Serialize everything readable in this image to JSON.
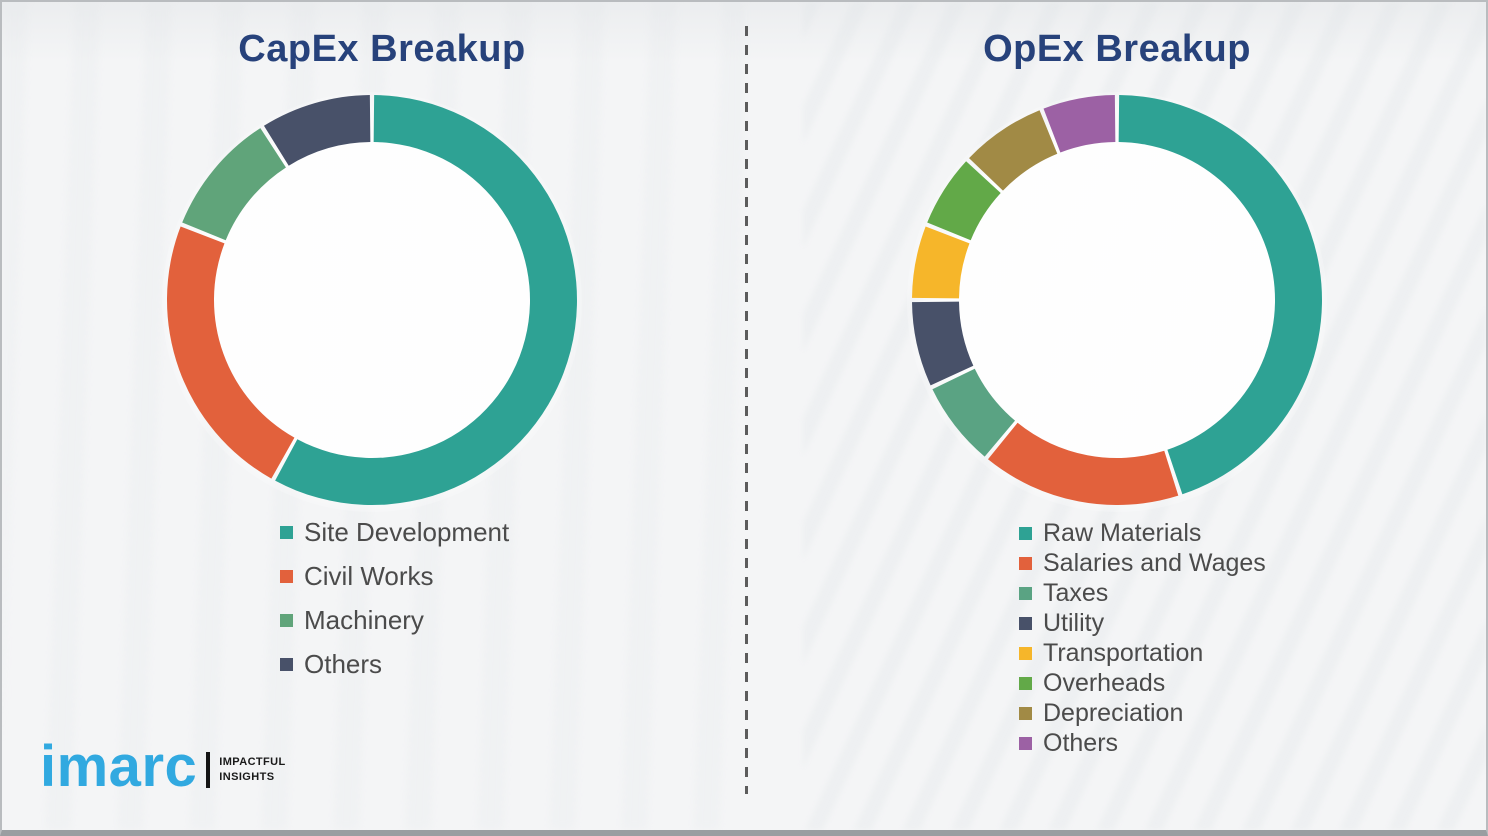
{
  "chart_data": [
    {
      "type": "pie",
      "subtype": "donut",
      "title": "CapEx Breakup",
      "categories": [
        "Site Development",
        "Civil Works",
        "Machinery",
        "Others"
      ],
      "values": [
        58,
        23,
        10,
        9
      ],
      "unit": "percent",
      "colors": [
        "#2EA294",
        "#E2613C",
        "#60A47A",
        "#485169"
      ],
      "start_angle_deg": 0,
      "direction": "clockwise",
      "legend_position": "bottom-left",
      "data_labels_shown": false
    },
    {
      "type": "pie",
      "subtype": "donut",
      "title": "OpEx Breakup",
      "categories": [
        "Raw Materials",
        "Salaries and Wages",
        "Taxes",
        "Utility",
        "Transportation",
        "Overheads",
        "Depreciation",
        "Others"
      ],
      "values": [
        45,
        16,
        7,
        7,
        6,
        6,
        7,
        6
      ],
      "unit": "percent",
      "colors": [
        "#2EA294",
        "#E2613C",
        "#5AA383",
        "#485169",
        "#F6B62A",
        "#62A948",
        "#A18A45",
        "#9C61A4"
      ],
      "start_angle_deg": 0,
      "direction": "clockwise",
      "legend_position": "bottom-left",
      "data_labels_shown": false
    }
  ],
  "branding": {
    "wordmark": "imarc",
    "tagline_line1": "IMPACTFUL",
    "tagline_line2": "INSIGHTS",
    "wordmark_color": "#31A9E0"
  },
  "styles": {
    "title_color": "#27427B",
    "legend_text_color": "#4B4B4B",
    "divider_color": "#5C5C5C",
    "background_color": "#F4F5F6",
    "segment_gap_color": "#FFFFFF"
  }
}
